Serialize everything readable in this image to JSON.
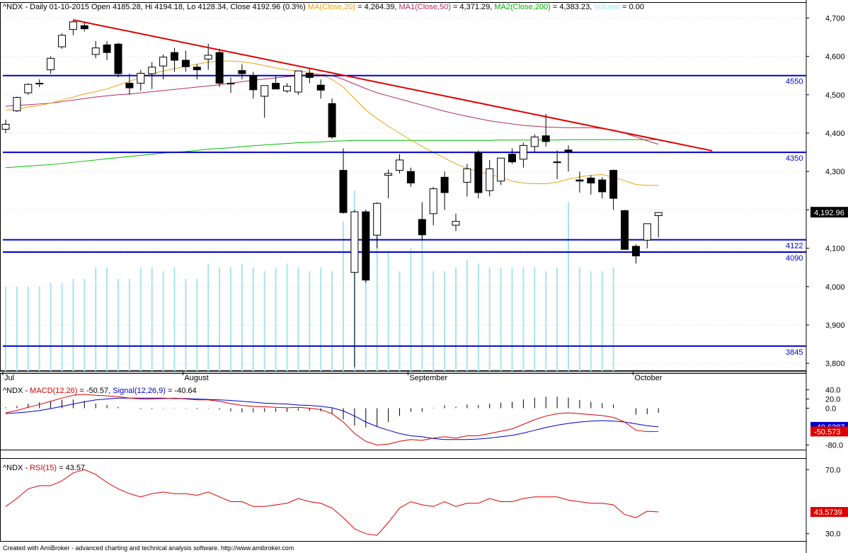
{
  "colors": {
    "bull": "#ffffff",
    "bear": "#000000",
    "ma20": "#e8a317",
    "ma50": "#b03060",
    "ma200": "#00c000",
    "volume": "#a8e4ec",
    "level": "#0000cc",
    "trend": "#dd0000",
    "macd": "#dd0000",
    "signal": "#0000cc",
    "rsi": "#dd0000"
  },
  "header": {
    "price": {
      "symbol_info": "^NDX - Daily 01-10-2015 Open 4185.28, Hi 4194.18, Lo 4128.34, Close 4192.96 (0.3%)",
      "ma20_label": "MA(Close,20)",
      "ma20_value": "= 4,264.39,",
      "ma50_label": "MA1(Close,50)",
      "ma50_value": "= 4,371.29,",
      "ma200_label": "MA2(Close,200)",
      "ma200_value": "= 4,383.23,",
      "volume_label": "Volume",
      "volume_value": "= 0.00"
    },
    "macd": {
      "prefix": "^NDX -",
      "macd_label": "MACD(12,26)",
      "macd_value": "= -50.57,",
      "signal_label": "Signal(12,26,9)",
      "signal_value": "= -40.64"
    },
    "rsi": {
      "prefix": "^NDX -",
      "rsi_label": "RSI(15)",
      "rsi_value": "= 43.57"
    }
  },
  "footer": "Created with AmiBroker - advanced charting and technical analysis software. http://www.amibroker.com",
  "chart_data": [
    {
      "type": "candlestick",
      "symbol": "^NDX",
      "ylim": [
        3780,
        4710
      ],
      "y_ticks": [
        3800,
        3900,
        4000,
        4100,
        4200,
        4300,
        4400,
        4500,
        4600,
        4700
      ],
      "y_tick_labels": [
        "3,800",
        "3,900",
        "4,000",
        "4,100",
        "4,200",
        "4,300",
        "4,400",
        "4,500",
        "4,600",
        "4,700"
      ],
      "x_labels": [
        {
          "label": "Jul",
          "index": 0
        },
        {
          "label": "August",
          "index": 16
        },
        {
          "label": "September",
          "index": 36
        },
        {
          "label": "October",
          "index": 56
        }
      ],
      "ohlc": [
        [
          4410,
          4435,
          4400,
          4423
        ],
        [
          4458,
          4495,
          4455,
          4493
        ],
        [
          4505,
          4530,
          4500,
          4527
        ],
        [
          4528,
          4540,
          4520,
          4530
        ],
        [
          4565,
          4600,
          4555,
          4595
        ],
        [
          4625,
          4660,
          4620,
          4655
        ],
        [
          4670,
          4695,
          4655,
          4690
        ],
        [
          4680,
          4690,
          4665,
          4672
        ],
        [
          4605,
          4640,
          4595,
          4622
        ],
        [
          4630,
          4640,
          4590,
          4610
        ],
        [
          4632,
          4635,
          4545,
          4555
        ],
        [
          4530,
          4555,
          4500,
          4518
        ],
        [
          4530,
          4565,
          4510,
          4556
        ],
        [
          4555,
          4585,
          4515,
          4572
        ],
        [
          4575,
          4605,
          4540,
          4598
        ],
        [
          4610,
          4622,
          4560,
          4590
        ],
        [
          4590,
          4615,
          4560,
          4573
        ],
        [
          4572,
          4580,
          4540,
          4565
        ],
        [
          4593,
          4633,
          4565,
          4603
        ],
        [
          4610,
          4620,
          4520,
          4530
        ],
        [
          4530,
          4545,
          4505,
          4528
        ],
        [
          4563,
          4580,
          4540,
          4555
        ],
        [
          4550,
          4560,
          4490,
          4513
        ],
        [
          4496,
          4520,
          4440,
          4524
        ],
        [
          4530,
          4550,
          4520,
          4515
        ],
        [
          4510,
          4530,
          4505,
          4522
        ],
        [
          4507,
          4560,
          4500,
          4562
        ],
        [
          4556,
          4570,
          4530,
          4545
        ],
        [
          4525,
          4540,
          4490,
          4512
        ],
        [
          4477,
          4490,
          4385,
          4390
        ],
        [
          4303,
          4360,
          4190,
          4193
        ],
        [
          4037,
          4200,
          3790,
          4195
        ],
        [
          4195,
          4200,
          4010,
          4017
        ],
        [
          4134,
          4220,
          4100,
          4217
        ],
        [
          4290,
          4305,
          4230,
          4295
        ],
        [
          4303,
          4345,
          4295,
          4330
        ],
        [
          4300,
          4310,
          4260,
          4270
        ],
        [
          4175,
          4220,
          4120,
          4135
        ],
        [
          4190,
          4260,
          4160,
          4255
        ],
        [
          4285,
          4300,
          4200,
          4245
        ],
        [
          4160,
          4190,
          4145,
          4170
        ],
        [
          4272,
          4320,
          4235,
          4307
        ],
        [
          4350,
          4355,
          4230,
          4245
        ],
        [
          4250,
          4330,
          4235,
          4307
        ],
        [
          4275,
          4335,
          4265,
          4335
        ],
        [
          4345,
          4360,
          4320,
          4325
        ],
        [
          4332,
          4375,
          4310,
          4368
        ],
        [
          4365,
          4397,
          4350,
          4390
        ],
        [
          4393,
          4450,
          4365,
          4378
        ],
        [
          4325,
          4355,
          4280,
          4325
        ],
        [
          4356,
          4368,
          4300,
          4351
        ],
        [
          4278,
          4300,
          4245,
          4275
        ],
        [
          4283,
          4290,
          4240,
          4270
        ],
        [
          4278,
          4285,
          4230,
          4247
        ],
        [
          4303,
          4305,
          4200,
          4230
        ],
        [
          4198,
          4200,
          4100,
          4097
        ],
        [
          4105,
          4110,
          4060,
          4080
        ],
        [
          4121,
          4155,
          4100,
          4164
        ],
        [
          4185,
          4194,
          4128,
          4193
        ]
      ],
      "volume_heights_relative": [
        0.95,
        1.0,
        1.0,
        1.0,
        1.0,
        1.0,
        1.0,
        1.0,
        1.0,
        1.0,
        1.0,
        1.0,
        1.0,
        1.0,
        1.0,
        1.0,
        1.0,
        1.0,
        1.0,
        1.0,
        1.0,
        1.0,
        1.0,
        1.0,
        1.0,
        1.0,
        1.0,
        1.0,
        1.0,
        1.0,
        1.0,
        1.0,
        1.0,
        1.0,
        1.0,
        1.0,
        1.0,
        1.0,
        1.0,
        1.0,
        1.0,
        1.0,
        1.0,
        1.0,
        1.0,
        1.0,
        1.0,
        1.0,
        1.0,
        1.0,
        1.0,
        1.0,
        1.0,
        1.0,
        1.0,
        1.0,
        1.0,
        0,
        0
      ],
      "volume_tops": [
        4000,
        4000,
        4000,
        4000,
        4010,
        4010,
        4020,
        4020,
        4050,
        4050,
        4020,
        4020,
        4050,
        4050,
        4040,
        4050,
        4020,
        4020,
        4060,
        4050,
        4050,
        4060,
        4050,
        4040,
        4050,
        4060,
        4050,
        4040,
        4050,
        4040,
        4170,
        4250,
        4200,
        4190,
        4090,
        4040,
        4100,
        4140,
        4040,
        4040,
        4050,
        4070,
        4060,
        4050,
        4050,
        4050,
        4050,
        4050,
        4040,
        4050,
        4220,
        4050,
        4040,
        4040,
        4050,
        0,
        0,
        0,
        0
      ],
      "ma20": {
        "name": "MA(Close,20)",
        "start_index": 0,
        "values": [
          4460,
          4462,
          4468,
          4472,
          4478,
          4486,
          4494,
          4502,
          4508,
          4515,
          4525,
          4535,
          4545,
          4555,
          4562,
          4568,
          4574,
          4580,
          4585,
          4588,
          4588,
          4586,
          4582,
          4576,
          4570,
          4565,
          4562,
          4558,
          4553,
          4540,
          4520,
          4490,
          4460,
          4438,
          4418,
          4400,
          4382,
          4365,
          4350,
          4335,
          4320,
          4308,
          4300,
          4292,
          4285,
          4275,
          4270,
          4268,
          4268,
          4272,
          4280,
          4286,
          4290,
          4292,
          4285,
          4276,
          4266,
          4264,
          4264
        ]
      },
      "ma50": {
        "name": "MA1(Close,50)",
        "start_index": 0,
        "values": [
          4470,
          4472,
          4474,
          4476,
          4478,
          4482,
          4486,
          4490,
          4494,
          4497,
          4500,
          4502,
          4505,
          4508,
          4511,
          4514,
          4517,
          4520,
          4523,
          4526,
          4530,
          4534,
          4538,
          4541,
          4544,
          4547,
          4550,
          4552,
          4553,
          4550,
          4540,
          4528,
          4516,
          4505,
          4497,
          4489,
          4481,
          4473,
          4465,
          4457,
          4450,
          4444,
          4438,
          4432,
          4428,
          4424,
          4420,
          4418,
          4416,
          4415,
          4414,
          4414,
          4414,
          4412,
          4408,
          4400,
          4390,
          4380,
          4371
        ]
      },
      "ma200": {
        "name": "MA2(Close,200)",
        "start_index": 0,
        "values": [
          4310,
          4312,
          4314,
          4316,
          4318,
          4321,
          4324,
          4327,
          4330,
          4333,
          4336,
          4339,
          4342,
          4345,
          4348,
          4350,
          4352,
          4355,
          4358,
          4360,
          4362,
          4365,
          4367,
          4369,
          4371,
          4373,
          4375,
          4376,
          4377,
          4379,
          4380,
          4381,
          4381,
          4381,
          4381,
          4381,
          4381,
          4381,
          4381,
          4381,
          4381,
          4381,
          4381,
          4381,
          4382,
          4382,
          4382,
          4382,
          4382,
          4382,
          4383,
          4383,
          4383,
          4383,
          4383,
          4383,
          4383,
          4383,
          4383
        ]
      },
      "horizontal_levels": [
        {
          "value": 4550,
          "label": "4550"
        },
        {
          "value": 4350,
          "label": "4350"
        },
        {
          "value": 4122,
          "label": "4122"
        },
        {
          "value": 4090,
          "label": "4090"
        },
        {
          "value": 3845,
          "label": "3845"
        }
      ],
      "trendline": {
        "from": {
          "index": 6,
          "value": 4695
        },
        "to": {
          "index": 59,
          "value": 4354
        }
      },
      "last_price_label": "4,192.96"
    },
    {
      "type": "macd",
      "ylim": [
        -110,
        50
      ],
      "y_ticks": [
        40,
        20,
        0,
        -80
      ],
      "y_tick_labels": [
        "40.0",
        "20.0",
        "0.0",
        "-80.0"
      ],
      "macd": [
        -10,
        -5,
        2,
        8,
        15,
        22,
        28,
        30,
        28,
        27,
        25,
        22,
        20,
        20,
        21,
        22,
        20,
        18,
        18,
        15,
        10,
        6,
        4,
        3,
        2,
        1,
        2,
        0,
        -3,
        -12,
        -30,
        -55,
        -72,
        -80,
        -78,
        -72,
        -68,
        -70,
        -65,
        -62,
        -65,
        -60,
        -60,
        -55,
        -50,
        -45,
        -35,
        -25,
        -17,
        -12,
        -10,
        -12,
        -14,
        -16,
        -20,
        -30,
        -48,
        -51,
        -50.57
      ],
      "signal": [
        -12,
        -10,
        -8,
        -5,
        -1,
        4,
        9,
        14,
        18,
        20,
        22,
        22,
        22,
        22,
        22,
        21,
        21,
        20,
        19,
        18,
        17,
        15,
        13,
        11,
        10,
        9,
        7,
        6,
        4,
        1,
        -6,
        -17,
        -30,
        -40,
        -48,
        -55,
        -60,
        -62,
        -66,
        -68,
        -68,
        -68,
        -67,
        -65,
        -62,
        -59,
        -54,
        -48,
        -42,
        -37,
        -33,
        -30,
        -28,
        -27,
        -28,
        -30,
        -34,
        -38,
        -40.64
      ],
      "histogram": [
        2,
        5,
        10,
        13,
        16,
        18,
        19,
        16,
        10,
        7,
        3,
        0,
        -2,
        -2,
        -1,
        1,
        -1,
        -2,
        -1,
        -3,
        -7,
        -9,
        -9,
        -8,
        -8,
        -8,
        -5,
        -6,
        -7,
        -13,
        -24,
        -38,
        -42,
        -40,
        -30,
        -17,
        -8,
        -8,
        1,
        6,
        3,
        8,
        7,
        10,
        12,
        14,
        19,
        23,
        25,
        25,
        23,
        18,
        14,
        11,
        8,
        0,
        -14,
        -13,
        -10
      ],
      "value_labels": [
        {
          "value": -40.6387,
          "text": "-40.6387",
          "series": "signal"
        },
        {
          "value": -50.5732,
          "text": "-50.573",
          "series": "macd"
        }
      ]
    },
    {
      "type": "rsi",
      "ylim": [
        25,
        75
      ],
      "y_ticks": [
        70,
        30
      ],
      "y_tick_labels": [
        "70.0",
        "30.0"
      ],
      "values": [
        47,
        52,
        58,
        60,
        60,
        63,
        68,
        70,
        67,
        62,
        58,
        55,
        53,
        55,
        56,
        55,
        55,
        54,
        56,
        53,
        50,
        50,
        47,
        47,
        48,
        49,
        52,
        50,
        49,
        46,
        40,
        33,
        30,
        29,
        37,
        46,
        50,
        48,
        47,
        50,
        47,
        49,
        49,
        52,
        50,
        50,
        52,
        53,
        53,
        53,
        51,
        50,
        49,
        49,
        48,
        42,
        40,
        44,
        43.57
      ],
      "value_label": {
        "value": 43.5739,
        "text": "43.5739"
      }
    }
  ]
}
